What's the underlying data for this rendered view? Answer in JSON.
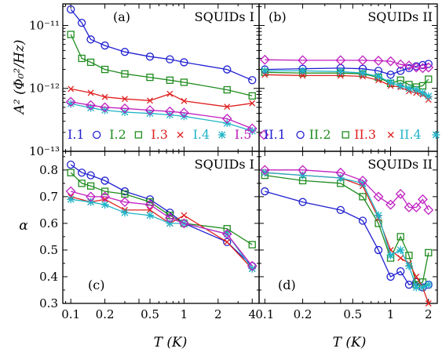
{
  "figure": {
    "ylabel_top": "A² (Φ₀²/Hz)",
    "ylabel_bottom": "α",
    "xlabel": "T (K)"
  },
  "chart_data": [
    {
      "panel": "(a)",
      "title": "SQUIDs I",
      "type": "line",
      "xscale": "log",
      "yscale": "log",
      "xlim": [
        0.085,
        4.6
      ],
      "ylim": [
        1e-13,
        2.2e-11
      ],
      "yticks": [
        "10⁻¹³",
        "10⁻¹²",
        "10⁻¹¹"
      ],
      "xticks": [],
      "legend_location": "bottom",
      "series": [
        {
          "name": "I.1",
          "color": "#1f1fd0",
          "marker": "circle",
          "x": [
            0.1,
            0.125,
            0.15,
            0.2,
            0.3,
            0.5,
            0.75,
            1.0,
            2.4,
            4.0
          ],
          "y": [
            1.8e-11,
            1.1e-11,
            6e-12,
            4.8e-12,
            3.8e-12,
            3.2e-12,
            2.9e-12,
            2.6e-12,
            2e-12,
            1.35e-12
          ]
        },
        {
          "name": "I.2",
          "color": "#1f8c1f",
          "marker": "square",
          "x": [
            0.1,
            0.125,
            0.15,
            0.2,
            0.3,
            0.5,
            0.75,
            1.0,
            2.4,
            4.0
          ],
          "y": [
            7.2e-12,
            3e-12,
            2.6e-12,
            2e-12,
            1.7e-12,
            1.5e-12,
            1.35e-12,
            1.25e-12,
            9.5e-13,
            7.6e-13
          ]
        },
        {
          "name": "I.3",
          "color": "#e02020",
          "marker": "x",
          "x": [
            0.1,
            0.15,
            0.2,
            0.3,
            0.5,
            0.75,
            1.0,
            2.4,
            4.0
          ],
          "y": [
            9.8e-13,
            8.5e-13,
            7.3e-13,
            6.8e-13,
            6.4e-13,
            8.2e-13,
            6.3e-13,
            5.1e-13,
            5.8e-13
          ]
        },
        {
          "name": "I.4",
          "color": "#20b4c8",
          "marker": "star",
          "x": [
            0.1,
            0.15,
            0.2,
            0.3,
            0.5,
            0.75,
            1.0,
            2.4,
            4.0
          ],
          "y": [
            5.7e-13,
            4.9e-13,
            4.5e-13,
            4.2e-13,
            4e-13,
            3.8e-13,
            3.6e-13,
            2.8e-13,
            2.1e-13
          ]
        },
        {
          "name": "I.5",
          "color": "#c020c0",
          "marker": "diamond",
          "x": [
            0.1,
            0.15,
            0.2,
            0.3,
            0.5,
            0.75,
            1.0,
            2.4,
            4.0
          ],
          "y": [
            6.1e-13,
            5.4e-13,
            5e-13,
            4.8e-13,
            4.5e-13,
            4.3e-13,
            4.1e-13,
            3.3e-13,
            2.3e-13
          ]
        }
      ]
    },
    {
      "panel": "(b)",
      "title": "SQUIDs II",
      "type": "line",
      "xscale": "log",
      "yscale": "log",
      "xlim": [
        0.09,
        2.35
      ],
      "ylim": [
        1e-13,
        2.2e-11
      ],
      "yticks": [],
      "xticks": [],
      "legend_location": "bottom",
      "series": [
        {
          "name": "II.1",
          "color": "#1f1fd0",
          "marker": "circle",
          "x": [
            0.1,
            0.2,
            0.4,
            0.6,
            0.8,
            1.0,
            1.2,
            1.4,
            1.6,
            1.8,
            2.0
          ],
          "y": [
            2e-12,
            2.05e-12,
            2.1e-12,
            2.05e-12,
            1.9e-12,
            1.65e-12,
            1.9e-12,
            2.1e-12,
            2.25e-12,
            2.35e-12,
            2.45e-12
          ]
        },
        {
          "name": "II.2",
          "color": "#1f8c1f",
          "marker": "square",
          "x": [
            0.1,
            0.2,
            0.4,
            0.6,
            0.8,
            1.0,
            1.2,
            1.4,
            1.6,
            1.8,
            2.0
          ],
          "y": [
            1.8e-12,
            1.75e-12,
            1.75e-12,
            1.7e-12,
            1.5e-12,
            1.2e-12,
            1.35e-12,
            1.15e-12,
            1.05e-12,
            1.1e-12,
            1.4e-12
          ]
        },
        {
          "name": "II.3",
          "color": "#e02020",
          "marker": "x",
          "x": [
            0.1,
            0.2,
            0.4,
            0.6,
            0.8,
            1.0,
            1.2,
            1.4,
            1.6,
            1.8,
            2.0
          ],
          "y": [
            1.65e-12,
            1.6e-12,
            1.6e-12,
            1.55e-12,
            1.35e-12,
            1.1e-12,
            1.05e-12,
            9e-13,
            8.5e-13,
            8e-13,
            6.6e-13
          ]
        },
        {
          "name": "II.4",
          "color": "#20b4c8",
          "marker": "star",
          "x": [
            0.1,
            0.2,
            0.4,
            0.6,
            0.8,
            1.0,
            1.2,
            1.4,
            1.6,
            1.8,
            2.0
          ],
          "y": [
            1.9e-12,
            1.9e-12,
            1.85e-12,
            1.75e-12,
            1.55e-12,
            1.25e-12,
            1.1e-12,
            1e-12,
            9.5e-13,
            8.5e-13,
            7.5e-13
          ]
        },
        {
          "name": "II.5",
          "color": "#c020c0",
          "marker": "diamond",
          "x": [
            0.1,
            0.2,
            0.4,
            0.6,
            0.8,
            1.0,
            1.2,
            1.4,
            1.6,
            1.8,
            2.0
          ],
          "y": [
            2.85e-12,
            2.8e-12,
            2.8e-12,
            2.8e-12,
            2.75e-12,
            2.7e-12,
            2.4e-12,
            2.3e-12,
            2.15e-12,
            2.1e-12,
            2.15e-12
          ]
        }
      ]
    },
    {
      "panel": "(c)",
      "title": "SQUIDs I",
      "type": "line",
      "xscale": "log",
      "yscale": "linear",
      "xlim": [
        0.085,
        4.6
      ],
      "ylim": [
        0.3,
        0.87
      ],
      "xticks": [
        0.1,
        0.2,
        0.5,
        1,
        2,
        4
      ],
      "xtick_labels": [
        "0.1",
        "0.2",
        "0.5",
        "1",
        "2",
        "4"
      ],
      "yticks": [
        0.3,
        0.4,
        0.5,
        0.6,
        0.7,
        0.8
      ],
      "ytick_labels": [
        "0.3",
        "0.4",
        "0.5",
        "0.6",
        "0.7",
        "0.8"
      ],
      "series": [
        {
          "name": "I.1",
          "color": "#1f1fd0",
          "marker": "circle",
          "x": [
            0.1,
            0.125,
            0.15,
            0.2,
            0.3,
            0.5,
            0.75,
            1.0,
            2.4,
            4.0
          ],
          "y": [
            0.82,
            0.79,
            0.78,
            0.76,
            0.72,
            0.69,
            0.64,
            0.6,
            0.53,
            0.44
          ]
        },
        {
          "name": "I.2",
          "color": "#1f8c1f",
          "marker": "square",
          "x": [
            0.1,
            0.125,
            0.15,
            0.2,
            0.3,
            0.5,
            0.75,
            1.0,
            2.4,
            4.0
          ],
          "y": [
            0.79,
            0.75,
            0.74,
            0.72,
            0.71,
            0.68,
            0.63,
            0.6,
            0.58,
            0.52
          ]
        },
        {
          "name": "I.3",
          "color": "#e02020",
          "marker": "x",
          "x": [
            0.1,
            0.15,
            0.2,
            0.3,
            0.5,
            0.75,
            1.0,
            2.4,
            4.0
          ],
          "y": [
            0.7,
            0.68,
            0.69,
            0.65,
            0.65,
            0.6,
            0.63,
            0.53,
            0.43
          ]
        },
        {
          "name": "I.4",
          "color": "#20b4c8",
          "marker": "star",
          "x": [
            0.1,
            0.15,
            0.2,
            0.3,
            0.5,
            0.75,
            1.0,
            2.4,
            4.0
          ],
          "y": [
            0.69,
            0.68,
            0.67,
            0.64,
            0.63,
            0.6,
            0.6,
            0.56,
            0.43
          ]
        },
        {
          "name": "I.5",
          "color": "#c020c0",
          "marker": "diamond",
          "x": [
            0.1,
            0.15,
            0.2,
            0.3,
            0.5,
            0.75,
            1.0,
            2.4,
            4.0
          ],
          "y": [
            0.72,
            0.7,
            0.7,
            0.68,
            0.67,
            0.62,
            0.6,
            0.56,
            0.44
          ]
        }
      ]
    },
    {
      "panel": "(d)",
      "title": "SQUIDs II",
      "type": "line",
      "xscale": "log",
      "yscale": "linear",
      "xlim": [
        0.09,
        2.35
      ],
      "ylim": [
        0.3,
        0.87
      ],
      "xticks": [
        0.1,
        0.2,
        0.5,
        1,
        2
      ],
      "xtick_labels": [
        "0.1",
        "0.2",
        "0.5",
        "1",
        "2"
      ],
      "yticks": [],
      "series": [
        {
          "name": "II.1",
          "color": "#1f1fd0",
          "marker": "circle",
          "x": [
            0.1,
            0.2,
            0.4,
            0.6,
            0.8,
            1.0,
            1.2,
            1.4,
            1.6,
            1.8,
            2.0
          ],
          "y": [
            0.72,
            0.68,
            0.65,
            0.61,
            0.5,
            0.4,
            0.42,
            0.37,
            0.38,
            0.36,
            0.37
          ]
        },
        {
          "name": "II.2",
          "color": "#1f8c1f",
          "marker": "square",
          "x": [
            0.1,
            0.2,
            0.4,
            0.6,
            0.8,
            1.0,
            1.2,
            1.4,
            1.6,
            1.8,
            2.0
          ],
          "y": [
            0.78,
            0.76,
            0.75,
            0.7,
            0.6,
            0.47,
            0.55,
            0.48,
            0.37,
            0.38,
            0.49
          ]
        },
        {
          "name": "II.3",
          "color": "#e02020",
          "marker": "x",
          "x": [
            0.1,
            0.2,
            0.4,
            0.6,
            0.8,
            1.0,
            1.2,
            1.4,
            1.6,
            1.8,
            2.0
          ],
          "y": [
            0.79,
            0.78,
            0.77,
            0.74,
            0.62,
            0.5,
            0.47,
            0.45,
            0.4,
            0.36,
            0.3
          ]
        },
        {
          "name": "II.4",
          "color": "#20b4c8",
          "marker": "star",
          "x": [
            0.1,
            0.2,
            0.4,
            0.6,
            0.8,
            1.0,
            1.2,
            1.4,
            1.6,
            1.8,
            2.0
          ],
          "y": [
            0.79,
            0.78,
            0.77,
            0.75,
            0.63,
            0.48,
            0.5,
            0.44,
            0.36,
            0.36,
            0.37
          ]
        },
        {
          "name": "II.5",
          "color": "#c020c0",
          "marker": "diamond",
          "x": [
            0.1,
            0.2,
            0.4,
            0.6,
            0.8,
            1.0,
            1.2,
            1.4,
            1.6,
            1.8,
            2.0
          ],
          "y": [
            0.8,
            0.8,
            0.79,
            0.76,
            0.7,
            0.67,
            0.71,
            0.66,
            0.66,
            0.69,
            0.65
          ]
        }
      ]
    }
  ]
}
